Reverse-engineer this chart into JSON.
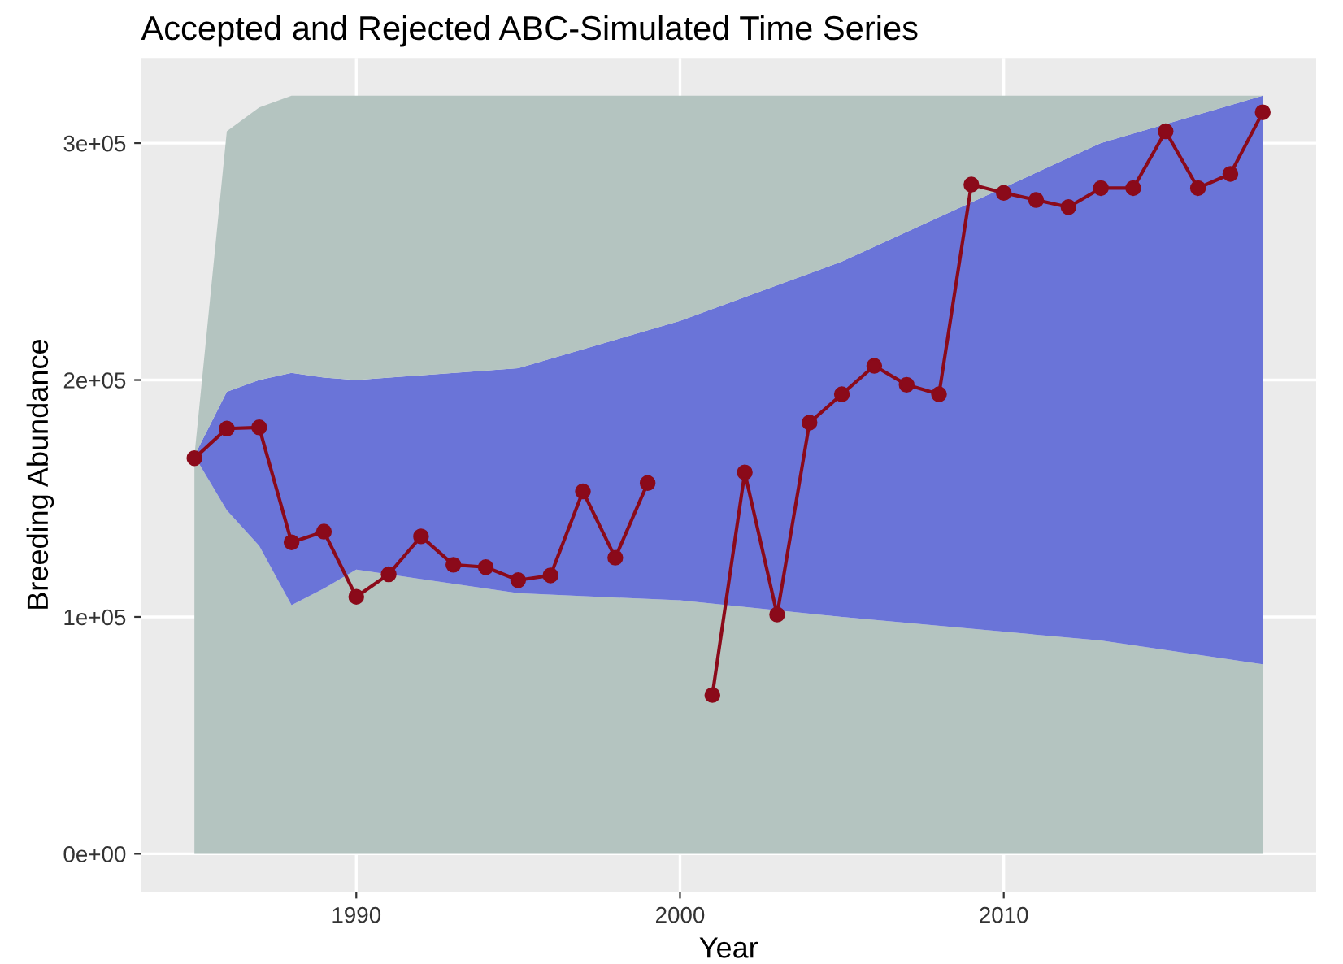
{
  "chart_data": {
    "type": "line",
    "title": "Accepted and Rejected ABC-Simulated Time Series",
    "xlabel": "Year",
    "ylabel": "Breeding Abundance",
    "xlim": [
      1983.35,
      2019.65
    ],
    "xticks": [
      1990,
      2000,
      2010
    ],
    "ylim": [
      -16000,
      336000
    ],
    "yticks": [
      {
        "value": 0,
        "label": "0e+00"
      },
      {
        "value": 100000,
        "label": "1e+05"
      },
      {
        "value": 200000,
        "label": "2e+05"
      },
      {
        "value": 300000,
        "label": "3e+05"
      }
    ],
    "grid": true,
    "stacked": true,
    "series": [
      {
        "type": "area",
        "color": "#b4c4c0",
        "x": [
          1985,
          1986,
          1987,
          1988,
          1989,
          1990,
          1995,
          2000,
          2005,
          2009,
          2013,
          2018
        ],
        "values": [
          168000,
          145000,
          130000,
          105000,
          112000,
          120000,
          110000,
          107000,
          100000,
          95000,
          90000,
          80000
        ]
      },
      {
        "type": "area",
        "color": "#6a74d8",
        "x": [
          1985,
          1986,
          1987,
          1988,
          1989,
          1990,
          1995,
          2000,
          2005,
          2009,
          2013,
          2018
        ],
        "values": [
          0,
          50000,
          70000,
          98000,
          89000,
          80000,
          95000,
          118000,
          150000,
          180000,
          210000,
          240000
        ]
      },
      {
        "type": "area",
        "color": "#b4c4c0",
        "x": [
          1985,
          1986,
          1987,
          1988,
          1989,
          1990,
          1995,
          2000,
          2005,
          2009,
          2013,
          2018
        ],
        "values": [
          0,
          110000,
          115000,
          117000,
          119000,
          120000,
          115000,
          95000,
          70000,
          45000,
          20000,
          0
        ]
      },
      {
        "color": "#8b0a1a",
        "marker": "circle",
        "line_style": "solid",
        "x": [
          1985,
          1986,
          1987,
          1988,
          1989,
          1990,
          1991,
          1992,
          1993,
          1994,
          1995,
          1996,
          1997,
          1998,
          1999,
          2000,
          2001,
          2002,
          2003,
          2004,
          2005,
          2006,
          2007,
          2008,
          2009,
          2010,
          2011,
          2012,
          2013,
          2014,
          2015,
          2016,
          2017,
          2018
        ],
        "values": [
          167000,
          179500,
          180000,
          131500,
          136000,
          108500,
          118000,
          134000,
          122000,
          121000,
          115500,
          117500,
          153000,
          125000,
          156500,
          null,
          67000,
          161000,
          101000,
          182000,
          194000,
          206000,
          198000,
          194000,
          282500,
          279000,
          276000,
          273000,
          281000,
          281000,
          305000,
          281000,
          287000,
          313000
        ]
      }
    ]
  }
}
